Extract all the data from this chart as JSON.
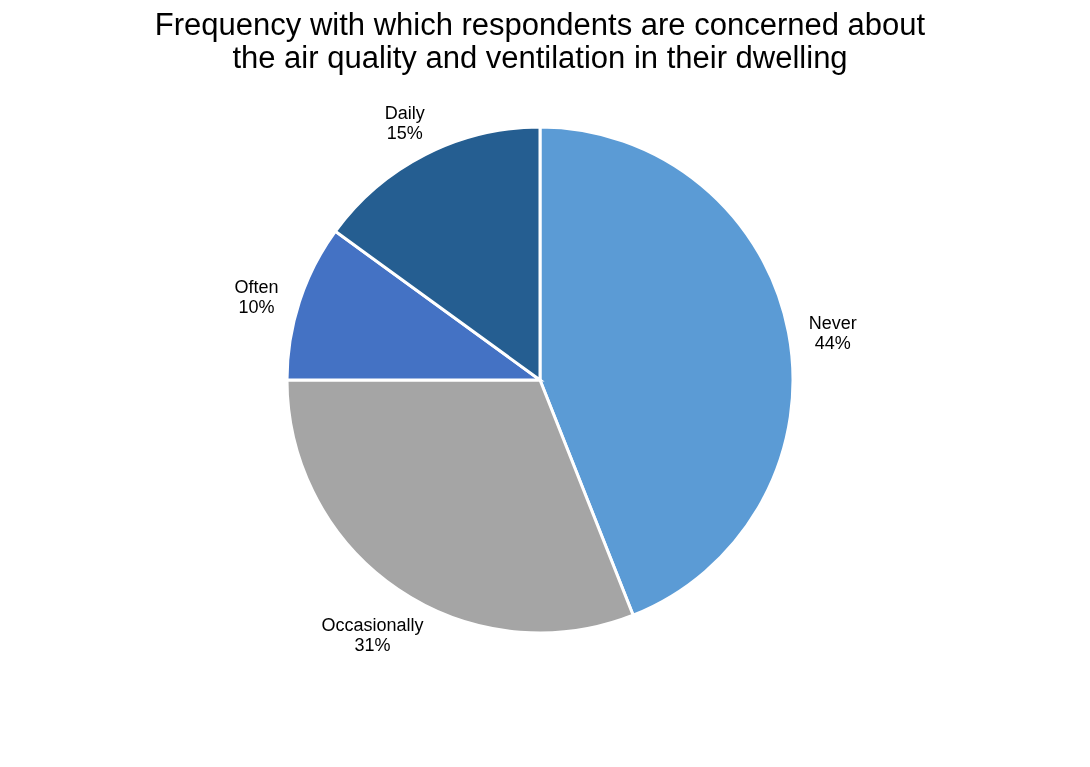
{
  "chart_data": {
    "type": "pie",
    "title": [
      "Frequency with which respondents are concerned about",
      "the air quality and ventilation in their dwelling"
    ],
    "categories": [
      "Never",
      "Occasionally",
      "Often",
      "Daily"
    ],
    "values": [
      44,
      31,
      10,
      15
    ],
    "value_labels": [
      "44%",
      "31%",
      "10%",
      "15%"
    ],
    "colors": [
      "#5b9bd5",
      "#a5a5a5",
      "#4472c4",
      "#255e91"
    ],
    "legend": false
  }
}
